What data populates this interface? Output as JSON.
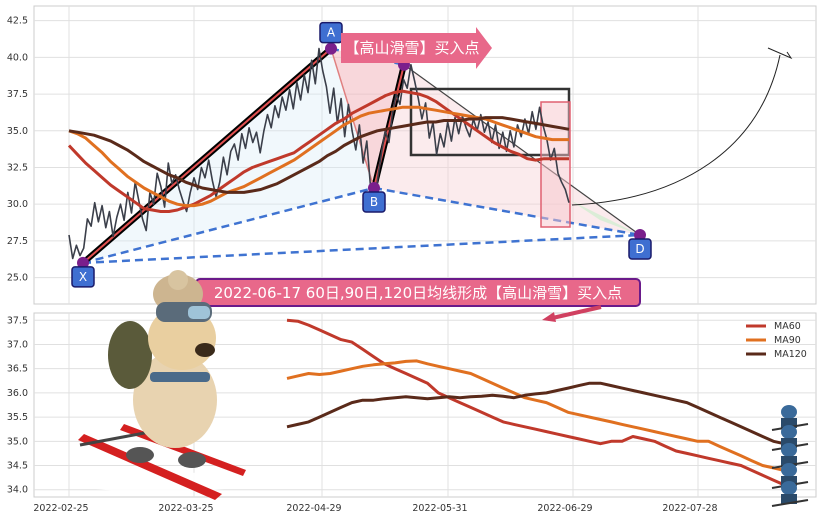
{
  "chart_data": [
    {
      "type": "line",
      "panel": "price",
      "ylim": [
        23.2,
        43.5
      ],
      "yticks": [
        25.0,
        27.5,
        30.0,
        32.5,
        35.0,
        37.5,
        40.0,
        42.5
      ],
      "ytick_labels": [
        "25.0",
        "27.5",
        "30.0",
        "32.5",
        "35.0",
        "37.5",
        "40.0",
        "42.5"
      ],
      "grid": true,
      "series": [
        {
          "role": "price",
          "color": "#3b3f4a",
          "values": [
            27.9,
            26.3,
            27.2,
            26.5,
            27.0,
            29.0,
            28.5,
            30.1,
            28.8,
            29.9,
            28.4,
            29.5,
            27.8,
            29.1,
            30.0,
            28.9,
            30.8,
            29.4,
            31.5,
            30.2,
            29.0,
            28.2,
            30.8,
            30.0,
            32.1,
            31.2,
            29.8,
            32.8,
            31.4,
            32.0,
            31.0,
            30.2,
            29.5,
            30.8,
            31.8,
            31.0,
            32.5,
            31.8,
            33.0,
            31.6,
            30.5,
            31.5,
            33.2,
            32.0,
            33.6,
            34.1,
            33.0,
            34.8,
            33.8,
            35.2,
            34.2,
            34.9,
            33.5,
            35.0,
            36.1,
            35.2,
            36.7,
            35.9,
            37.3,
            36.4,
            37.8,
            36.5,
            38.3,
            37.1,
            38.8,
            37.6,
            39.8,
            38.2,
            40.6,
            39.1,
            38.0,
            36.2,
            37.9,
            35.5,
            37.2,
            34.6,
            36.8,
            35.0,
            33.7,
            35.4,
            32.8,
            34.3,
            31.2,
            30.0,
            31.8,
            33.5,
            35.0,
            34.2,
            36.2,
            37.5,
            36.8,
            38.5,
            37.9,
            39.5,
            38.4,
            37.2,
            35.8,
            36.9,
            34.5,
            35.6,
            33.4,
            34.8,
            33.9,
            35.6,
            34.3,
            35.9,
            34.8,
            36.0,
            35.2,
            34.6,
            35.8,
            35.0,
            36.1,
            34.9,
            35.6,
            34.2,
            35.4,
            33.8,
            34.9,
            33.6,
            35.0,
            33.9,
            35.4,
            34.6,
            35.8,
            34.8,
            36.3,
            35.1,
            36.6,
            35.3,
            34.4,
            33.0,
            33.8,
            32.1,
            31.5,
            31.0,
            30.1
          ]
        },
        {
          "role": "MA60",
          "color": "#c0392b",
          "values": [
            34.0,
            33.4,
            32.8,
            32.3,
            31.8,
            31.3,
            30.9,
            30.5,
            30.1,
            29.7,
            29.6,
            29.5,
            29.5,
            29.6,
            29.8,
            30.0,
            30.3,
            30.6,
            31.0,
            31.4,
            31.8,
            32.2,
            32.5,
            32.7,
            32.9,
            33.1,
            33.3,
            33.5,
            33.9,
            34.3,
            34.7,
            35.1,
            35.5,
            35.8,
            36.2,
            36.5,
            36.8,
            37.1,
            37.4,
            37.6,
            37.7,
            37.6,
            37.5,
            37.3,
            37.0,
            36.6,
            36.2,
            35.8,
            35.4,
            35.0,
            34.6,
            34.2,
            33.9,
            33.6,
            33.4,
            33.1,
            33.0,
            33.1,
            33.1,
            33.1,
            33.1
          ]
        },
        {
          "role": "MA90",
          "color": "#e07020",
          "values": [
            35.0,
            34.8,
            34.5,
            34.0,
            33.5,
            32.9,
            32.4,
            31.9,
            31.5,
            31.1,
            30.8,
            30.5,
            30.2,
            30.0,
            29.9,
            29.9,
            30.0,
            30.2,
            30.5,
            30.8,
            31.0,
            31.2,
            31.5,
            31.8,
            32.1,
            32.4,
            32.7,
            33.0,
            33.4,
            33.8,
            34.2,
            34.6,
            35.0,
            35.4,
            35.7,
            36.0,
            36.2,
            36.3,
            36.4,
            36.5,
            36.6,
            36.6,
            36.6,
            36.5,
            36.4,
            36.3,
            36.2,
            36.1,
            36.0,
            35.9,
            35.8,
            35.6,
            35.4,
            35.2,
            35.0,
            34.8,
            34.6,
            34.5,
            34.4,
            34.4,
            34.4
          ]
        },
        {
          "role": "MA120",
          "color": "#5a2a1a",
          "values": [
            35.0,
            34.9,
            34.8,
            34.7,
            34.5,
            34.3,
            34.0,
            33.7,
            33.3,
            32.9,
            32.6,
            32.3,
            32.0,
            31.8,
            31.5,
            31.3,
            31.1,
            31.0,
            30.9,
            30.8,
            30.8,
            30.8,
            30.9,
            31.0,
            31.2,
            31.4,
            31.7,
            32.0,
            32.3,
            32.6,
            32.9,
            33.3,
            33.6,
            34.0,
            34.3,
            34.6,
            34.8,
            35.0,
            35.1,
            35.2,
            35.3,
            35.4,
            35.5,
            35.6,
            35.6,
            35.7,
            35.7,
            35.7,
            35.8,
            35.8,
            35.9,
            35.9,
            35.9,
            35.8,
            35.7,
            35.6,
            35.5,
            35.4,
            35.3,
            35.2,
            35.1
          ]
        }
      ],
      "pattern_points": [
        {
          "label": "X",
          "y": 26.0,
          "color": "#7a1f8c"
        },
        {
          "label": "A",
          "y": 40.6,
          "color": "#7a1f8c"
        },
        {
          "label": "B",
          "y": 31.1,
          "color": "#7a1f8c"
        },
        {
          "label": "C",
          "y": 39.5,
          "color": "#7a1f8c"
        },
        {
          "label": "D",
          "y": 27.9,
          "color": "#7a1f8c"
        }
      ],
      "annotation_arrow_text": "【高山滑雪】买入点"
    },
    {
      "type": "line",
      "panel": "moving_averages",
      "ylim": [
        33.85,
        37.65
      ],
      "yticks": [
        34.0,
        34.5,
        35.0,
        35.5,
        36.0,
        36.5,
        37.0,
        37.5
      ],
      "ytick_labels": [
        "34.0",
        "34.5",
        "35.0",
        "35.5",
        "36.0",
        "36.5",
        "37.0",
        "37.5"
      ],
      "xtick_labels": [
        "2022-02-25",
        "2022-03-25",
        "2022-04-29",
        "2022-05-31",
        "2022-06-29",
        "2022-07-28"
      ],
      "grid": true,
      "legend": "top-right",
      "series": [
        {
          "name": "MA60",
          "color": "#c0392b",
          "values": [
            37.5,
            37.48,
            37.4,
            37.3,
            37.2,
            37.1,
            37.05,
            36.9,
            36.75,
            36.6,
            36.5,
            36.4,
            36.3,
            36.2,
            36.0,
            35.9,
            35.8,
            35.7,
            35.6,
            35.5,
            35.4,
            35.35,
            35.3,
            35.25,
            35.2,
            35.15,
            35.1,
            35.05,
            35.0,
            34.95,
            35.0,
            35.0,
            35.1,
            35.05,
            35.0,
            34.9,
            34.8,
            34.75,
            34.7,
            34.65,
            34.6,
            34.55,
            34.5,
            34.4,
            34.3,
            34.2,
            34.1,
            34.0
          ]
        },
        {
          "name": "MA90",
          "color": "#e07020",
          "values": [
            36.3,
            36.35,
            36.4,
            36.38,
            36.4,
            36.45,
            36.5,
            36.55,
            36.58,
            36.6,
            36.62,
            36.65,
            36.66,
            36.6,
            36.55,
            36.5,
            36.45,
            36.4,
            36.3,
            36.2,
            36.1,
            36.0,
            35.9,
            35.85,
            35.8,
            35.7,
            35.6,
            35.55,
            35.5,
            35.45,
            35.4,
            35.35,
            35.3,
            35.25,
            35.2,
            35.15,
            35.1,
            35.05,
            35.0,
            35.0,
            34.9,
            34.8,
            34.7,
            34.6,
            34.5,
            34.45,
            34.4,
            34.35
          ]
        },
        {
          "name": "MA120",
          "color": "#5a2a1a",
          "values": [
            35.3,
            35.35,
            35.4,
            35.5,
            35.6,
            35.7,
            35.8,
            35.85,
            35.85,
            35.88,
            35.9,
            35.92,
            35.9,
            35.88,
            35.9,
            35.92,
            35.9,
            35.92,
            35.93,
            35.95,
            35.93,
            35.9,
            35.95,
            35.98,
            36.0,
            36.05,
            36.1,
            36.15,
            36.2,
            36.2,
            36.15,
            36.1,
            36.05,
            36.0,
            35.95,
            35.9,
            35.85,
            35.8,
            35.7,
            35.6,
            35.5,
            35.4,
            35.3,
            35.2,
            35.1,
            35.0,
            34.95,
            34.9
          ]
        }
      ],
      "annotation": "2022-06-17 60日,90日,120日均线形成【高山滑雪】买入点"
    }
  ]
}
